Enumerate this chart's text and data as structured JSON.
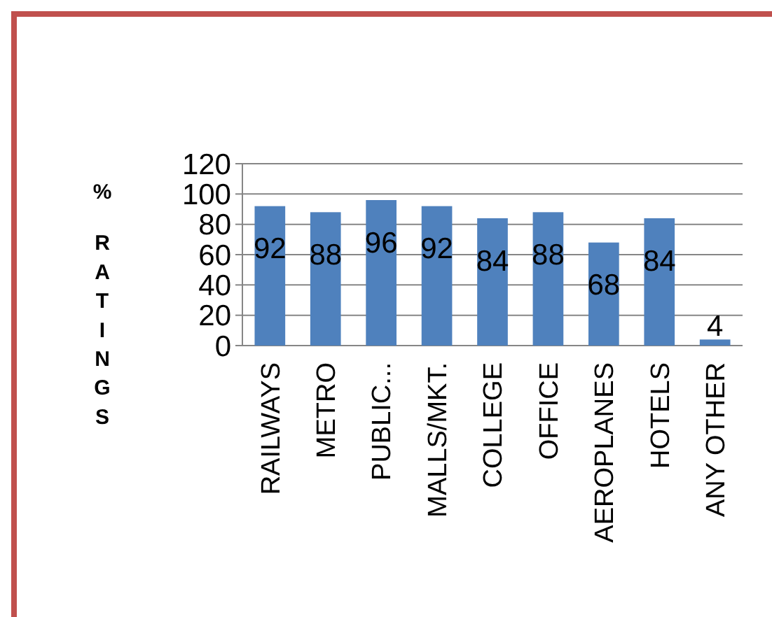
{
  "chart_data": {
    "type": "bar",
    "ylabel": "% RATINGS",
    "categories": [
      "RAILWAYS",
      "METRO",
      "PUBLIC...",
      "MALLS/MKT.",
      "COLLEGE",
      "OFFICE",
      "AEROPLANES",
      "HOTELS",
      "ANY OTHER"
    ],
    "values": [
      92,
      88,
      96,
      92,
      84,
      88,
      68,
      84,
      4
    ],
    "color": "#4f81bd",
    "ylim": [
      0,
      120
    ],
    "yticks": [
      0,
      20,
      40,
      60,
      80,
      100,
      120
    ],
    "grid": "y",
    "data_labels": true
  }
}
